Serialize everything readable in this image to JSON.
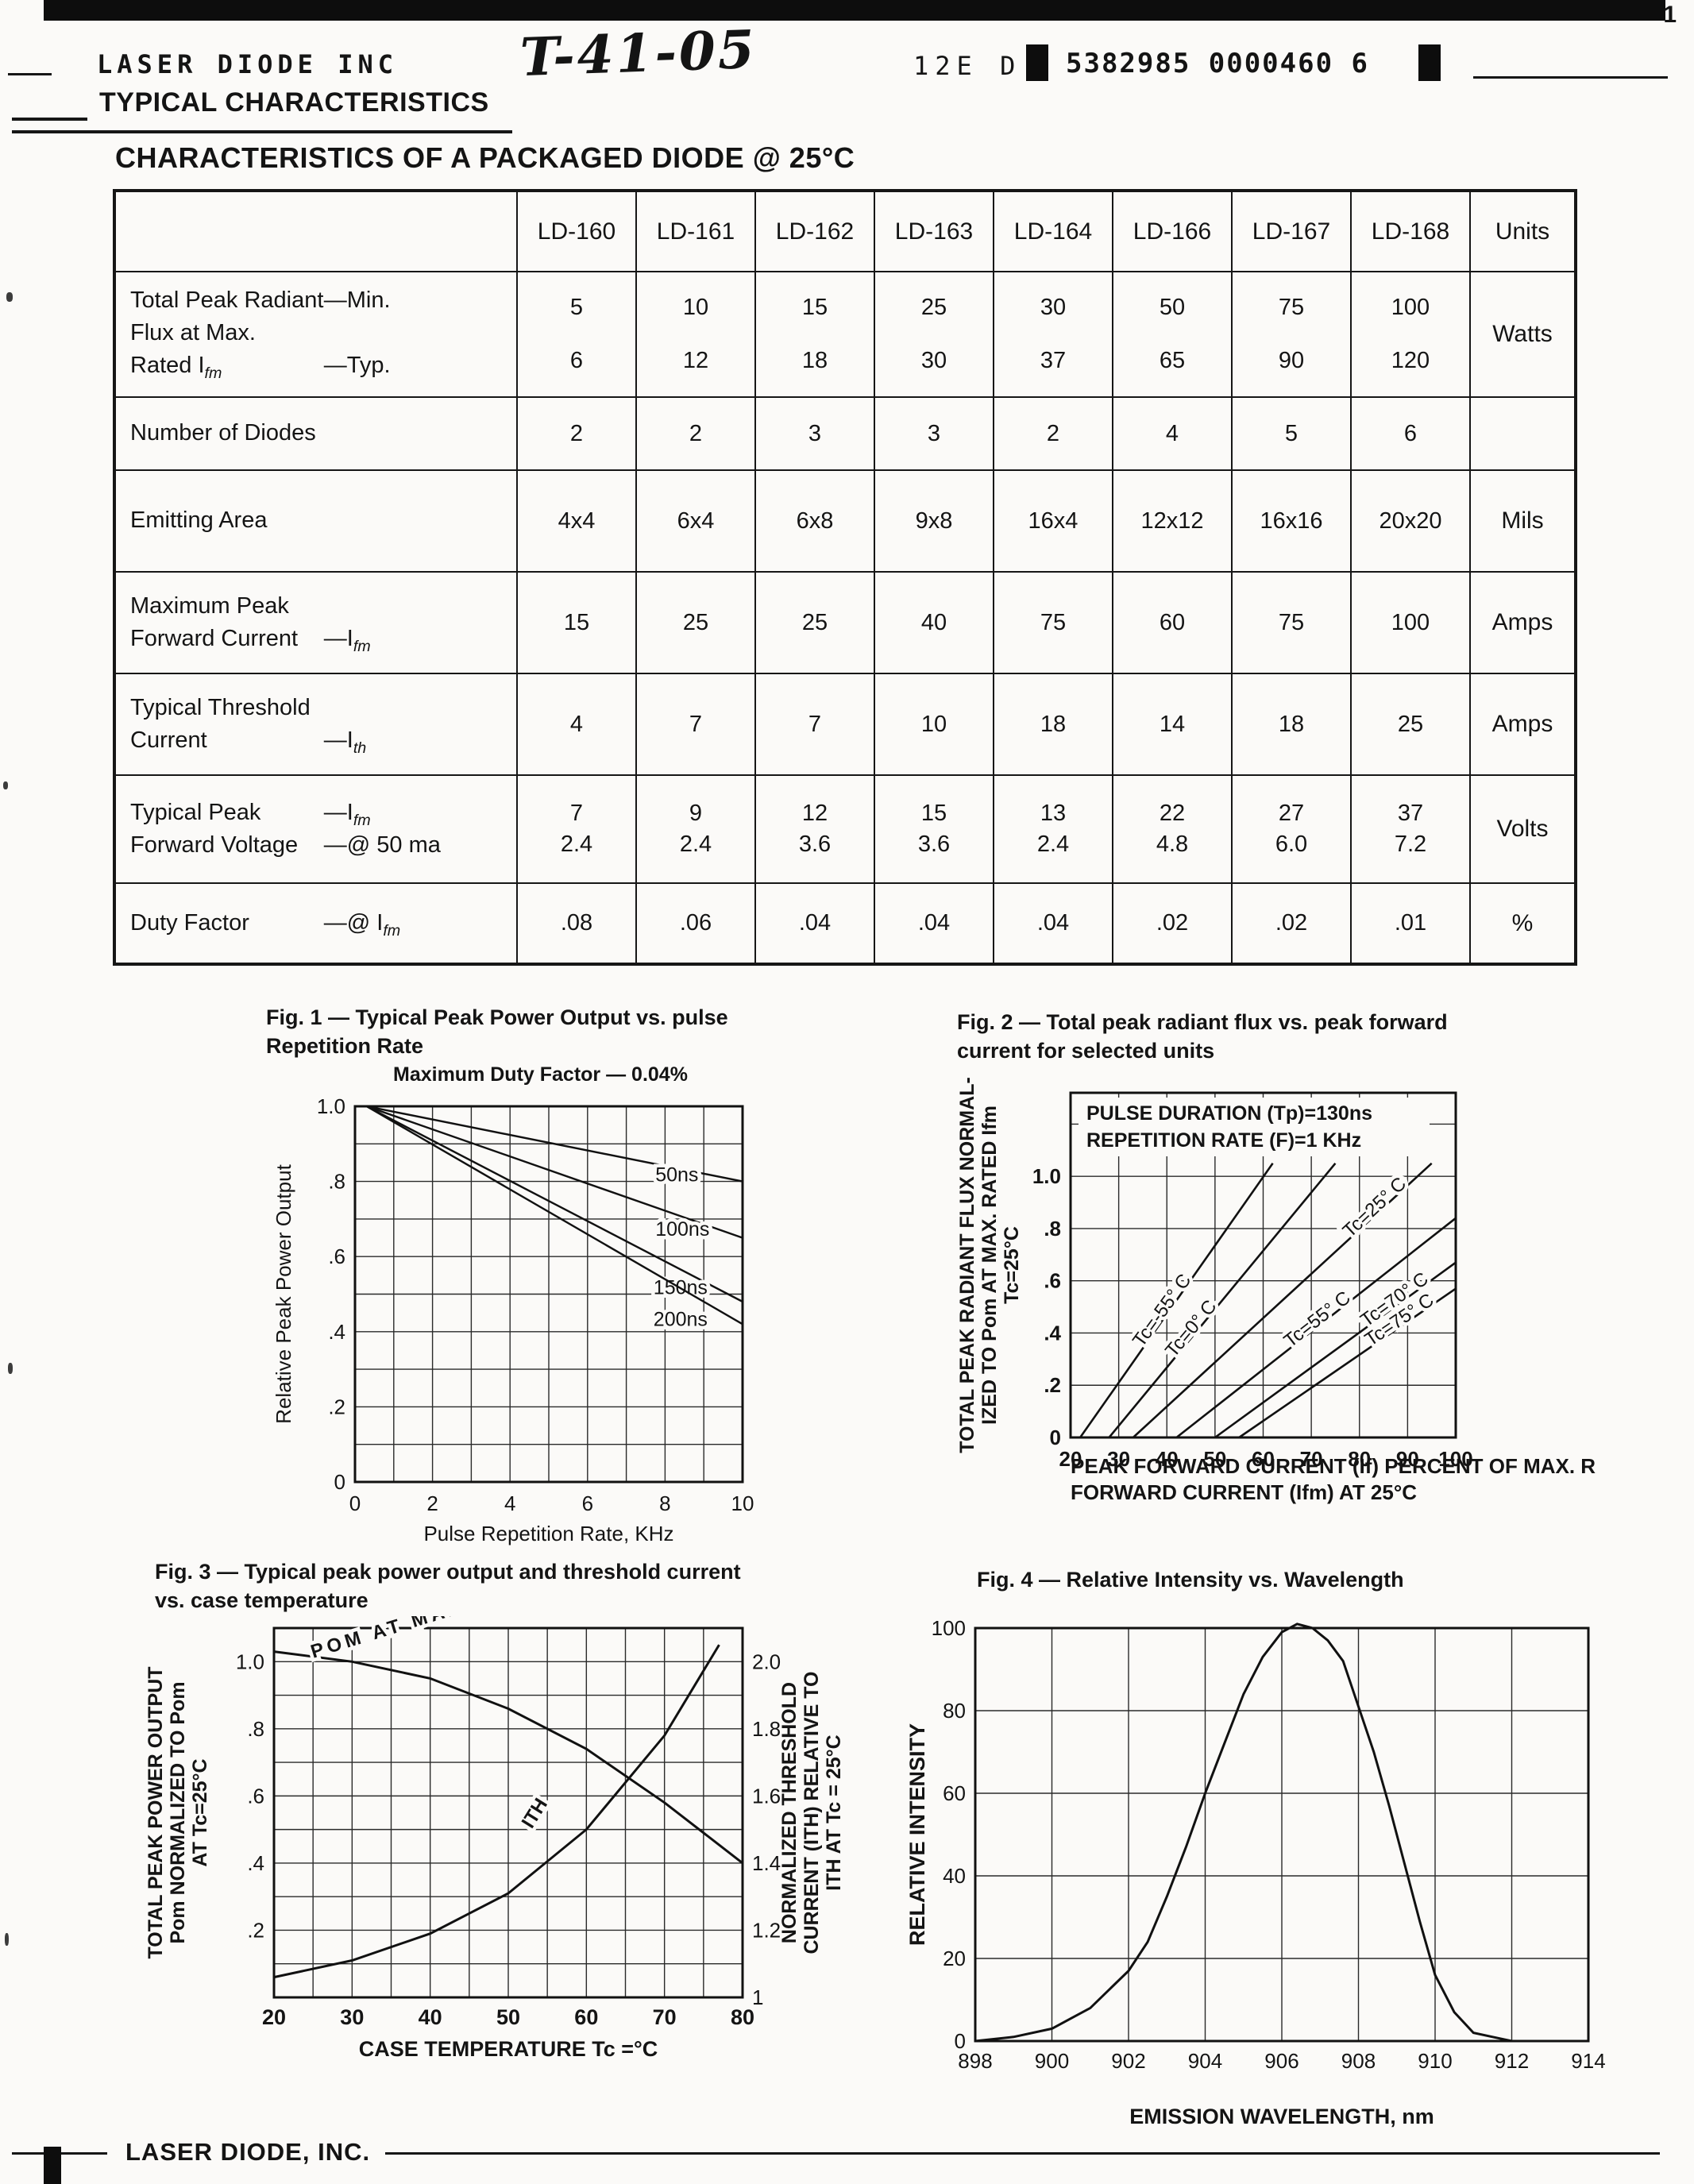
{
  "header": {
    "company": "LASER DIODE INC",
    "handwritten_code": "T-41-05",
    "doc_code": "12E D",
    "doc_number": "5382985 0000460 6",
    "page_mark": "1",
    "section_title": "TYPICAL CHARACTERISTICS"
  },
  "table": {
    "title": "CHARACTERISTICS OF A PACKAGED DIODE @ 25°C",
    "columns": [
      "LD-160",
      "LD-161",
      "LD-162",
      "LD-163",
      "LD-164",
      "LD-166",
      "LD-167",
      "LD-168"
    ],
    "units_header": "Units",
    "rows": [
      {
        "label": [
          [
            "Total Peak Radiant",
            "—Min."
          ],
          [
            "Flux at Max.",
            ""
          ],
          [
            "Rated I~fm~",
            "—Typ."
          ]
        ],
        "values": [
          [
            "5",
            "6"
          ],
          [
            "10",
            "12"
          ],
          [
            "15",
            "18"
          ],
          [
            "25",
            "30"
          ],
          [
            "30",
            "37"
          ],
          [
            "50",
            "65"
          ],
          [
            "75",
            "90"
          ],
          [
            "100",
            "120"
          ]
        ],
        "units": "Watts"
      },
      {
        "label": [
          [
            "Number of Diodes",
            ""
          ]
        ],
        "values": [
          [
            "2"
          ],
          [
            "2"
          ],
          [
            "3"
          ],
          [
            "3"
          ],
          [
            "2"
          ],
          [
            "4"
          ],
          [
            "5"
          ],
          [
            "6"
          ]
        ],
        "units": ""
      },
      {
        "label": [
          [
            "Emitting Area",
            ""
          ]
        ],
        "values": [
          [
            "4x4"
          ],
          [
            "6x4"
          ],
          [
            "6x8"
          ],
          [
            "9x8"
          ],
          [
            "16x4"
          ],
          [
            "12x12"
          ],
          [
            "16x16"
          ],
          [
            "20x20"
          ]
        ],
        "units": "Mils"
      },
      {
        "label": [
          [
            "Maximum Peak",
            ""
          ],
          [
            "Forward Current",
            "—I~fm~"
          ]
        ],
        "values": [
          [
            "15"
          ],
          [
            "25"
          ],
          [
            "25"
          ],
          [
            "40"
          ],
          [
            "75"
          ],
          [
            "60"
          ],
          [
            "75"
          ],
          [
            "100"
          ]
        ],
        "units": "Amps"
      },
      {
        "label": [
          [
            "Typical Threshold",
            ""
          ],
          [
            "Current",
            "—I~th~"
          ]
        ],
        "values": [
          [
            "4"
          ],
          [
            "7"
          ],
          [
            "7"
          ],
          [
            "10"
          ],
          [
            "18"
          ],
          [
            "14"
          ],
          [
            "18"
          ],
          [
            "25"
          ]
        ],
        "units": "Amps"
      },
      {
        "label": [
          [
            "Typical Peak",
            "—I~fm~"
          ],
          [
            "Forward Voltage",
            "—@ 50 ma"
          ]
        ],
        "values": [
          [
            "7",
            "2.4"
          ],
          [
            "9",
            "2.4"
          ],
          [
            "12",
            "3.6"
          ],
          [
            "15",
            "3.6"
          ],
          [
            "13",
            "2.4"
          ],
          [
            "22",
            "4.8"
          ],
          [
            "27",
            "6.0"
          ],
          [
            "37",
            "7.2"
          ]
        ],
        "units": "Volts"
      },
      {
        "label": [
          [
            "Duty Factor",
            "—@ I~fm~"
          ]
        ],
        "values": [
          [
            ".08"
          ],
          [
            ".06"
          ],
          [
            ".04"
          ],
          [
            ".04"
          ],
          [
            ".04"
          ],
          [
            ".02"
          ],
          [
            ".02"
          ],
          [
            ".01"
          ]
        ],
        "units": "%"
      }
    ]
  },
  "chart_data": [
    {
      "id": "fig1",
      "type": "line",
      "title": "Fig. 1 — Typical Peak Power Output vs. pulse Repetition Rate",
      "subtitle": "Maximum Duty Factor — 0.04%",
      "xlabel": "Pulse Repetition Rate, KHz",
      "ylabel": "Relative Peak Power Output",
      "xlim": [
        0,
        10
      ],
      "ylim": [
        0,
        1.0
      ],
      "xticks": [
        0,
        2,
        4,
        6,
        8,
        10
      ],
      "yticks": [
        {
          "v": 1.0,
          "t": "1.0"
        },
        {
          "v": 0.8,
          "t": ".8"
        },
        {
          "v": 0.6,
          "t": ".6"
        },
        {
          "v": 0.4,
          "t": ".4"
        },
        {
          "v": 0.2,
          "t": ".2"
        },
        {
          "v": 0,
          "t": "0"
        }
      ],
      "grid": true,
      "series": [
        {
          "name": "50ns",
          "points": [
            [
              0.3,
              1.0
            ],
            [
              10,
              0.8
            ]
          ],
          "label_at": [
            7.75,
            0.8
          ],
          "rot": 0
        },
        {
          "name": "100ns",
          "points": [
            [
              0.3,
              1.0
            ],
            [
              10,
              0.65
            ]
          ],
          "label_at": [
            7.75,
            0.655
          ],
          "rot": 0
        },
        {
          "name": "150ns",
          "points": [
            [
              0.3,
              1.0
            ],
            [
              10,
              0.48
            ]
          ],
          "label_at": [
            7.7,
            0.5
          ],
          "rot": 0
        },
        {
          "name": "200ns",
          "points": [
            [
              0.3,
              1.0
            ],
            [
              10,
              0.42
            ]
          ],
          "label_at": [
            7.7,
            0.415
          ],
          "rot": 0
        }
      ]
    },
    {
      "id": "fig2",
      "type": "line",
      "title": "Fig. 2 — Total peak radiant flux vs. peak forward current for selected units",
      "annotations": [
        "PULSE DURATION (Tp)=130ns",
        "REPETITION RATE (F)=1 KHz"
      ],
      "ylabel_lines": [
        "TOTAL PEAK RADIANT FLUX NORMAL-",
        "IZED TO Pom AT MAX. RATED Ifm",
        "Tc=25°C"
      ],
      "xlabel_lines": [
        "PEAK FORWARD CURRENT (If) PERCENT OF MAX. RATED",
        "FORWARD CURRENT (Ifm) AT 25°C"
      ],
      "xlim": [
        20,
        100
      ],
      "ylim": [
        0,
        1.0
      ],
      "xticks": [
        20,
        30,
        40,
        50,
        60,
        70,
        80,
        90,
        100
      ],
      "yticks": [
        {
          "v": 1.0,
          "t": "1.0"
        },
        {
          "v": 0.8,
          "t": ".8"
        },
        {
          "v": 0.6,
          "t": ".6"
        },
        {
          "v": 0.4,
          "t": ".4"
        },
        {
          "v": 0.2,
          "t": ".2"
        },
        {
          "v": 0,
          "t": "0"
        }
      ],
      "grid": true,
      "series": [
        {
          "name": "Tc=-55° C",
          "points": [
            [
              22,
              0
            ],
            [
              62,
              1.05
            ]
          ],
          "label_at": [
            40,
            0.473
          ],
          "rot": -54
        },
        {
          "name": "Tc=0° C",
          "points": [
            [
              28,
              0
            ],
            [
              75,
              1.05
            ]
          ],
          "label_at": [
            46,
            0.402
          ],
          "rot": -50
        },
        {
          "name": "Tc=25° C",
          "points": [
            [
              33,
              0
            ],
            [
              95,
              1.05
            ]
          ],
          "label_at": [
            84,
            0.864
          ],
          "rot": -43
        },
        {
          "name": "Tc=55° C",
          "points": [
            [
              42,
              0
            ],
            [
              100,
              0.84
            ]
          ],
          "label_at": [
            72,
            0.434
          ],
          "rot": -38
        },
        {
          "name": "Tc=70° C",
          "points": [
            [
              50,
              0
            ],
            [
              100,
              0.67
            ]
          ],
          "label_at": [
            88,
            0.509
          ],
          "rot": -36
        },
        {
          "name": "Tc=75° C",
          "points": [
            [
              55,
              0
            ],
            [
              100,
              0.57
            ]
          ],
          "label_at": [
            89,
            0.431
          ],
          "rot": -34
        }
      ]
    },
    {
      "id": "fig3",
      "type": "line",
      "title": "Fig. 3 — Typical peak power output and threshold current vs. case temperature",
      "ylabel_left_lines": [
        "TOTAL PEAK POWER OUTPUT",
        "Pom NORMALIZED TO Pom",
        "AT Tc=25°C"
      ],
      "ylabel_right_lines": [
        "NORMALIZED THRESHOLD",
        "CURRENT (ITH) RELATIVE TO",
        "ITH AT Tc = 25°C"
      ],
      "xlabel": "CASE TEMPERATURE Tc =°C",
      "xlim": [
        20,
        80
      ],
      "ylim_left": [
        0,
        1.1
      ],
      "ylim_right": [
        1.0,
        2.1
      ],
      "xticks": [
        20,
        30,
        40,
        50,
        60,
        70,
        80
      ],
      "yticks_left": [
        {
          "v": 1.0,
          "t": "1.0"
        },
        {
          "v": 0.8,
          "t": ".8"
        },
        {
          "v": 0.6,
          "t": ".6"
        },
        {
          "v": 0.4,
          "t": ".4"
        },
        {
          "v": 0.2,
          "t": ".2"
        }
      ],
      "yticks_right": [
        {
          "v": 1.0,
          "t": "2.0"
        },
        {
          "v": 0.8,
          "t": "1.8"
        },
        {
          "v": 0.6,
          "t": "1.6"
        },
        {
          "v": 0.4,
          "t": "1.4"
        },
        {
          "v": 0.2,
          "t": "1.2"
        },
        {
          "v": 0,
          "t": "1"
        }
      ],
      "grid": true,
      "series": [
        {
          "name": "POM AT MAX RATED IFM",
          "points": [
            [
              20,
              1.03
            ],
            [
              30,
              1.0
            ],
            [
              40,
              0.95
            ],
            [
              50,
              0.86
            ],
            [
              60,
              0.74
            ],
            [
              70,
              0.58
            ],
            [
              80,
              0.4
            ]
          ],
          "label_at": [
            25,
            1.01
          ],
          "rot": -17
        },
        {
          "name": "ITH",
          "points": [
            [
              20,
              0.06
            ],
            [
              30,
              0.11
            ],
            [
              40,
              0.19
            ],
            [
              50,
              0.31
            ],
            [
              60,
              0.5
            ],
            [
              70,
              0.78
            ],
            [
              77,
              1.05
            ]
          ],
          "label_at": [
            53,
            0.5
          ],
          "rot": -58
        }
      ]
    },
    {
      "id": "fig4",
      "type": "line",
      "title": "Fig. 4 — Relative Intensity vs. Wavelength",
      "ylabel": "RELATIVE INTENSITY",
      "xlabel": "EMISSION WAVELENGTH, nm",
      "xlim": [
        898,
        914
      ],
      "ylim": [
        0,
        100
      ],
      "xticks": [
        898,
        900,
        902,
        904,
        906,
        908,
        910,
        912,
        914
      ],
      "yticks": [
        {
          "v": 100,
          "t": "100"
        },
        {
          "v": 80,
          "t": "80"
        },
        {
          "v": 60,
          "t": "60"
        },
        {
          "v": 40,
          "t": "40"
        },
        {
          "v": 20,
          "t": "20"
        },
        {
          "v": 0,
          "t": "0"
        }
      ],
      "grid": true,
      "series": [
        {
          "name": "emission spectrum",
          "points": [
            [
              898,
              0
            ],
            [
              899,
              1
            ],
            [
              900,
              3
            ],
            [
              901,
              8
            ],
            [
              902,
              17
            ],
            [
              902.5,
              24
            ],
            [
              903,
              35
            ],
            [
              903.5,
              47
            ],
            [
              904,
              60
            ],
            [
              904.5,
              72
            ],
            [
              905,
              84
            ],
            [
              905.5,
              93
            ],
            [
              906,
              99
            ],
            [
              906.4,
              101
            ],
            [
              906.8,
              100
            ],
            [
              907.2,
              97
            ],
            [
              907.6,
              92
            ],
            [
              908,
              81
            ],
            [
              908.4,
              70
            ],
            [
              908.8,
              57
            ],
            [
              909.2,
              43
            ],
            [
              909.6,
              29
            ],
            [
              910,
              16
            ],
            [
              910.5,
              7
            ],
            [
              911,
              2
            ],
            [
              911.5,
              1
            ],
            [
              912,
              0
            ],
            [
              913,
              0
            ],
            [
              914,
              0
            ]
          ]
        }
      ]
    }
  ],
  "footer": {
    "company": "LASER DIODE, INC."
  }
}
